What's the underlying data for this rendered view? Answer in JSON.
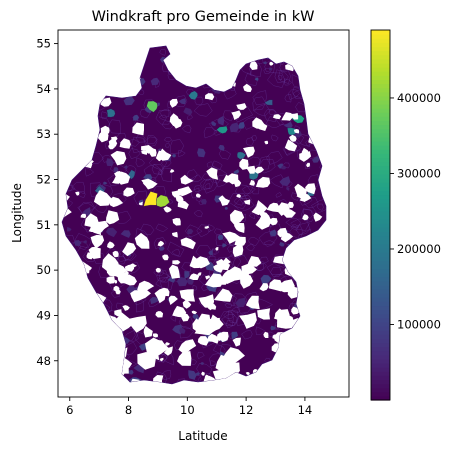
{
  "figure": {
    "title": "Windkraft pro Gemeinde in kW",
    "x_label": "Latitude",
    "y_label": "Longitude"
  },
  "x_axis": {
    "range": [
      5.6,
      15.5
    ],
    "ticks": [
      {
        "value": 6,
        "label": "6"
      },
      {
        "value": 8,
        "label": "8"
      },
      {
        "value": 10,
        "label": "10"
      },
      {
        "value": 12,
        "label": "12"
      },
      {
        "value": 14,
        "label": "14"
      }
    ]
  },
  "y_axis": {
    "range": [
      47.2,
      55.3
    ],
    "ticks": [
      {
        "value": 48,
        "label": "48"
      },
      {
        "value": 49,
        "label": "49"
      },
      {
        "value": 50,
        "label": "50"
      },
      {
        "value": 51,
        "label": "51"
      },
      {
        "value": 52,
        "label": "52"
      },
      {
        "value": 53,
        "label": "53"
      },
      {
        "value": 54,
        "label": "54"
      },
      {
        "value": 55,
        "label": "55"
      }
    ]
  },
  "colorbar": {
    "colormap": "viridis",
    "range": [
      0,
      490000
    ],
    "ticks": [
      {
        "value": 100000,
        "label": "100000"
      },
      {
        "value": 200000,
        "label": "200000"
      },
      {
        "value": 300000,
        "label": "300000"
      },
      {
        "value": 400000,
        "label": "400000"
      }
    ]
  },
  "colors": {
    "background": "#ffffff",
    "base_fill": "#440154",
    "border_line": "#7a5cc4",
    "viridis": [
      "#440154",
      "#482878",
      "#3e4989",
      "#31688e",
      "#26828e",
      "#1f9e89",
      "#35b779",
      "#6ece58",
      "#b5de2b",
      "#fde725"
    ]
  },
  "highlights": [
    {
      "lon": 8.75,
      "lat": 51.55,
      "value": 490000
    },
    {
      "lon": 9.1,
      "lat": 51.5,
      "value": 420000
    },
    {
      "lon": 8.85,
      "lat": 53.62,
      "value": 370000
    },
    {
      "lon": 11.2,
      "lat": 53.1,
      "value": 260000
    },
    {
      "lon": 13.75,
      "lat": 53.35,
      "value": 280000
    },
    {
      "lon": 13.55,
      "lat": 53.05,
      "value": 230000
    },
    {
      "lon": 7.4,
      "lat": 53.45,
      "value": 180000
    },
    {
      "lon": 10.25,
      "lat": 53.85,
      "value": 200000
    },
    {
      "lon": 11.8,
      "lat": 52.55,
      "value": 180000
    },
    {
      "lon": 12.25,
      "lat": 52.1,
      "value": 190000
    },
    {
      "lon": 14.2,
      "lat": 51.7,
      "value": 170000
    },
    {
      "lon": 8.1,
      "lat": 52.1,
      "value": 160000
    },
    {
      "lon": 7.0,
      "lat": 51.75,
      "value": 150000
    },
    {
      "lon": 12.8,
      "lat": 53.7,
      "value": 140000
    }
  ]
}
